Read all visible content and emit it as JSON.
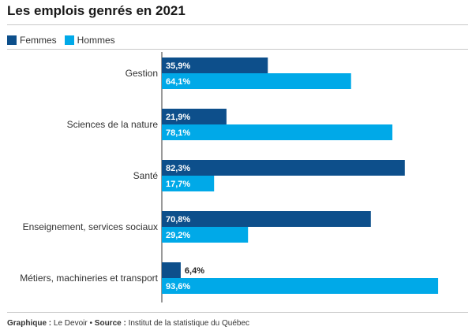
{
  "title": "Les emplois genrés en 2021",
  "legend": [
    {
      "label": "Femmes",
      "color": "#0d4f8b"
    },
    {
      "label": "Hommes",
      "color": "#00a9e8"
    }
  ],
  "footer": {
    "graph_label": "Graphique :",
    "graph_value": "Le Devoir",
    "separator": "•",
    "source_label": "Source :",
    "source_value": "Institut de la statistique du Québec"
  },
  "chart_data": {
    "type": "bar",
    "orientation": "horizontal",
    "title": "Les emplois genrés en 2021",
    "xlim": [
      0,
      100
    ],
    "grid": false,
    "legend_position": "top-left",
    "categories": [
      "Gestion",
      "Sciences de la nature",
      "Santé",
      "Enseignement, services sociaux",
      "Métiers, machineries et transport"
    ],
    "series": [
      {
        "name": "Femmes",
        "color": "#0d4f8b",
        "values": [
          35.9,
          21.9,
          82.3,
          70.8,
          6.4
        ],
        "labels": [
          "35,9%",
          "21,9%",
          "82,3%",
          "70,8%",
          "6,4%"
        ]
      },
      {
        "name": "Hommes",
        "color": "#00a9e8",
        "values": [
          64.1,
          78.1,
          17.7,
          29.2,
          93.6
        ],
        "labels": [
          "64,1%",
          "78,1%",
          "17,7%",
          "29,2%",
          "93,6%"
        ]
      }
    ]
  }
}
